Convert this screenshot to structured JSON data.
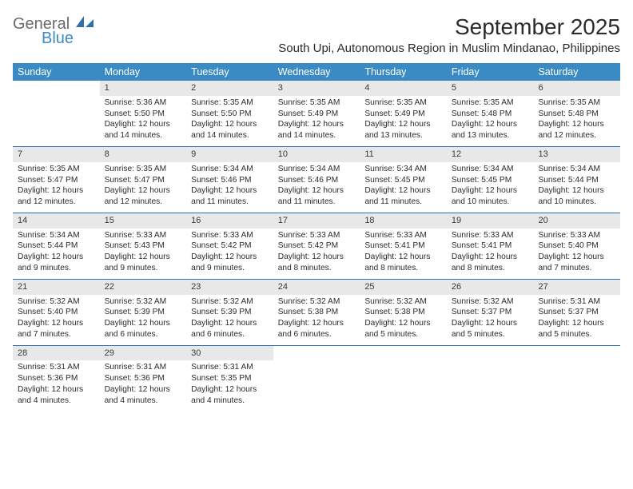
{
  "logo": {
    "word1": "General",
    "word2": "Blue"
  },
  "title": "September 2025",
  "location": "South Upi, Autonomous Region in Muslim Mindanao, Philippines",
  "colors": {
    "header_bg": "#3a8bc4",
    "row_border": "#2f6fa8",
    "daynum_bg": "#e8e8e8",
    "text": "#2b2b2b",
    "logo_gray": "#6b6b6b",
    "logo_blue": "#3a8bc4"
  },
  "typography": {
    "title_fontsize": 28,
    "location_fontsize": 15,
    "header_fontsize": 12.5,
    "cell_fontsize": 10.2
  },
  "weekdays": [
    "Sunday",
    "Monday",
    "Tuesday",
    "Wednesday",
    "Thursday",
    "Friday",
    "Saturday"
  ],
  "weeks": [
    [
      null,
      {
        "n": "1",
        "sunrise": "5:36 AM",
        "sunset": "5:50 PM",
        "daylight": "12 hours and 14 minutes."
      },
      {
        "n": "2",
        "sunrise": "5:35 AM",
        "sunset": "5:50 PM",
        "daylight": "12 hours and 14 minutes."
      },
      {
        "n": "3",
        "sunrise": "5:35 AM",
        "sunset": "5:49 PM",
        "daylight": "12 hours and 14 minutes."
      },
      {
        "n": "4",
        "sunrise": "5:35 AM",
        "sunset": "5:49 PM",
        "daylight": "12 hours and 13 minutes."
      },
      {
        "n": "5",
        "sunrise": "5:35 AM",
        "sunset": "5:48 PM",
        "daylight": "12 hours and 13 minutes."
      },
      {
        "n": "6",
        "sunrise": "5:35 AM",
        "sunset": "5:48 PM",
        "daylight": "12 hours and 12 minutes."
      }
    ],
    [
      {
        "n": "7",
        "sunrise": "5:35 AM",
        "sunset": "5:47 PM",
        "daylight": "12 hours and 12 minutes."
      },
      {
        "n": "8",
        "sunrise": "5:35 AM",
        "sunset": "5:47 PM",
        "daylight": "12 hours and 12 minutes."
      },
      {
        "n": "9",
        "sunrise": "5:34 AM",
        "sunset": "5:46 PM",
        "daylight": "12 hours and 11 minutes."
      },
      {
        "n": "10",
        "sunrise": "5:34 AM",
        "sunset": "5:46 PM",
        "daylight": "12 hours and 11 minutes."
      },
      {
        "n": "11",
        "sunrise": "5:34 AM",
        "sunset": "5:45 PM",
        "daylight": "12 hours and 11 minutes."
      },
      {
        "n": "12",
        "sunrise": "5:34 AM",
        "sunset": "5:45 PM",
        "daylight": "12 hours and 10 minutes."
      },
      {
        "n": "13",
        "sunrise": "5:34 AM",
        "sunset": "5:44 PM",
        "daylight": "12 hours and 10 minutes."
      }
    ],
    [
      {
        "n": "14",
        "sunrise": "5:34 AM",
        "sunset": "5:44 PM",
        "daylight": "12 hours and 9 minutes."
      },
      {
        "n": "15",
        "sunrise": "5:33 AM",
        "sunset": "5:43 PM",
        "daylight": "12 hours and 9 minutes."
      },
      {
        "n": "16",
        "sunrise": "5:33 AM",
        "sunset": "5:42 PM",
        "daylight": "12 hours and 9 minutes."
      },
      {
        "n": "17",
        "sunrise": "5:33 AM",
        "sunset": "5:42 PM",
        "daylight": "12 hours and 8 minutes."
      },
      {
        "n": "18",
        "sunrise": "5:33 AM",
        "sunset": "5:41 PM",
        "daylight": "12 hours and 8 minutes."
      },
      {
        "n": "19",
        "sunrise": "5:33 AM",
        "sunset": "5:41 PM",
        "daylight": "12 hours and 8 minutes."
      },
      {
        "n": "20",
        "sunrise": "5:33 AM",
        "sunset": "5:40 PM",
        "daylight": "12 hours and 7 minutes."
      }
    ],
    [
      {
        "n": "21",
        "sunrise": "5:32 AM",
        "sunset": "5:40 PM",
        "daylight": "12 hours and 7 minutes."
      },
      {
        "n": "22",
        "sunrise": "5:32 AM",
        "sunset": "5:39 PM",
        "daylight": "12 hours and 6 minutes."
      },
      {
        "n": "23",
        "sunrise": "5:32 AM",
        "sunset": "5:39 PM",
        "daylight": "12 hours and 6 minutes."
      },
      {
        "n": "24",
        "sunrise": "5:32 AM",
        "sunset": "5:38 PM",
        "daylight": "12 hours and 6 minutes."
      },
      {
        "n": "25",
        "sunrise": "5:32 AM",
        "sunset": "5:38 PM",
        "daylight": "12 hours and 5 minutes."
      },
      {
        "n": "26",
        "sunrise": "5:32 AM",
        "sunset": "5:37 PM",
        "daylight": "12 hours and 5 minutes."
      },
      {
        "n": "27",
        "sunrise": "5:31 AM",
        "sunset": "5:37 PM",
        "daylight": "12 hours and 5 minutes."
      }
    ],
    [
      {
        "n": "28",
        "sunrise": "5:31 AM",
        "sunset": "5:36 PM",
        "daylight": "12 hours and 4 minutes."
      },
      {
        "n": "29",
        "sunrise": "5:31 AM",
        "sunset": "5:36 PM",
        "daylight": "12 hours and 4 minutes."
      },
      {
        "n": "30",
        "sunrise": "5:31 AM",
        "sunset": "5:35 PM",
        "daylight": "12 hours and 4 minutes."
      },
      null,
      null,
      null,
      null
    ]
  ],
  "labels": {
    "sunrise": "Sunrise:",
    "sunset": "Sunset:",
    "daylight": "Daylight:"
  }
}
